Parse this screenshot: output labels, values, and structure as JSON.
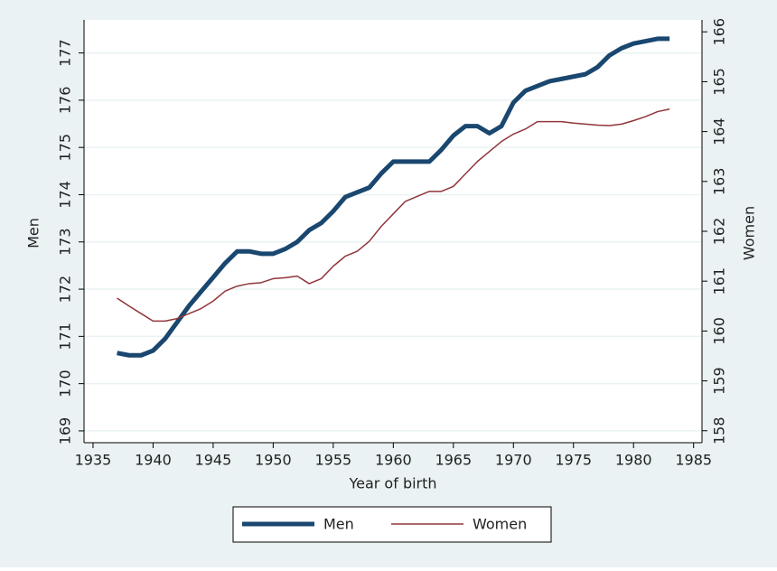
{
  "chart_data": {
    "type": "line",
    "x": [
      1937,
      1938,
      1939,
      1940,
      1941,
      1942,
      1943,
      1944,
      1945,
      1946,
      1947,
      1948,
      1949,
      1950,
      1951,
      1952,
      1953,
      1954,
      1955,
      1956,
      1957,
      1958,
      1959,
      1960,
      1961,
      1962,
      1963,
      1964,
      1965,
      1966,
      1967,
      1968,
      1969,
      1970,
      1971,
      1972,
      1973,
      1974,
      1975,
      1976,
      1977,
      1978,
      1979,
      1980,
      1981,
      1982,
      1983
    ],
    "series": [
      {
        "name": "Men",
        "color": "#1a476f",
        "values": [
          170.65,
          170.6,
          170.6,
          170.7,
          170.95,
          171.3,
          171.65,
          171.95,
          172.25,
          172.55,
          172.8,
          172.8,
          172.75,
          172.75,
          172.85,
          173.0,
          173.25,
          173.4,
          173.65,
          173.95,
          174.05,
          174.15,
          174.45,
          174.7,
          174.7,
          174.7,
          174.7,
          174.95,
          175.25,
          175.45,
          175.45,
          175.3,
          175.45,
          175.95,
          176.2,
          176.3,
          176.4,
          176.45,
          176.5,
          176.55,
          176.7,
          176.95,
          177.1,
          177.2,
          177.25,
          177.3,
          177.3
        ]
      },
      {
        "name": "Women",
        "color": "#90353b",
        "axis": "y2",
        "values": [
          160.66,
          160.5,
          160.35,
          160.2,
          160.2,
          160.25,
          160.35,
          160.45,
          160.6,
          160.8,
          160.9,
          160.95,
          160.97,
          161.05,
          161.07,
          161.1,
          160.95,
          161.05,
          161.3,
          161.5,
          161.6,
          161.8,
          162.1,
          162.35,
          162.6,
          162.7,
          162.8,
          162.8,
          162.9,
          163.15,
          163.4,
          163.6,
          163.8,
          163.95,
          164.05,
          164.2,
          164.2,
          164.2,
          164.17,
          164.15,
          164.13,
          164.12,
          164.15,
          164.22,
          164.3,
          164.4,
          164.45
        ]
      }
    ],
    "xlabel": "Year of birth",
    "ylabel": "Men",
    "y2label": "Women",
    "xlim": [
      1934.25,
      1985.7
    ],
    "xticks": [
      1935,
      1940,
      1945,
      1950,
      1955,
      1960,
      1965,
      1970,
      1975,
      1980,
      1985
    ],
    "ylim": [
      168.75,
      177.7
    ],
    "yticks": [
      169,
      170,
      171,
      172,
      173,
      174,
      175,
      176,
      177
    ],
    "y2lim": [
      157.76,
      166.24
    ],
    "y2ticks": [
      158,
      159,
      160,
      161,
      162,
      163,
      164,
      165,
      166
    ],
    "grid": true,
    "legend": "bottom"
  }
}
